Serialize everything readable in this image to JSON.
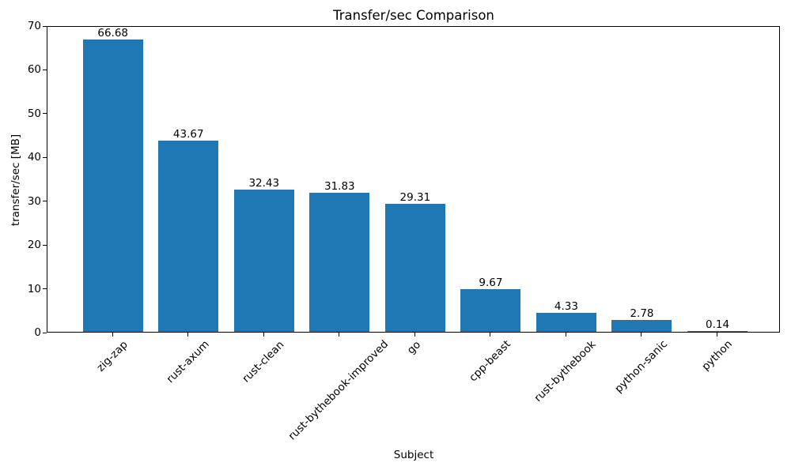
{
  "chart_data": {
    "type": "bar",
    "title": "Transfer/sec Comparison",
    "xlabel": "Subject",
    "ylabel": "transfer/sec [MB]",
    "categories": [
      "zig-zap",
      "rust-axum",
      "rust-clean",
      "rust-bythebook-improved",
      "go",
      "cpp-beast",
      "rust-bythebook",
      "python-sanic",
      "python"
    ],
    "values": [
      66.68,
      43.67,
      32.43,
      31.83,
      29.31,
      9.67,
      4.33,
      2.78,
      0.14
    ],
    "bar_labels": [
      "66.68",
      "43.67",
      "32.43",
      "31.83",
      "29.31",
      "9.67",
      "4.33",
      "2.78",
      "0.14"
    ],
    "ylim": [
      0,
      70
    ],
    "yticks": [
      0,
      10,
      20,
      30,
      40,
      50,
      60,
      70
    ],
    "bar_color": "#1f77b4",
    "axis_color": "#000000",
    "background_color": "#ffffff",
    "grid": false,
    "legend": false,
    "x_tick_rotation_deg": 45
  }
}
